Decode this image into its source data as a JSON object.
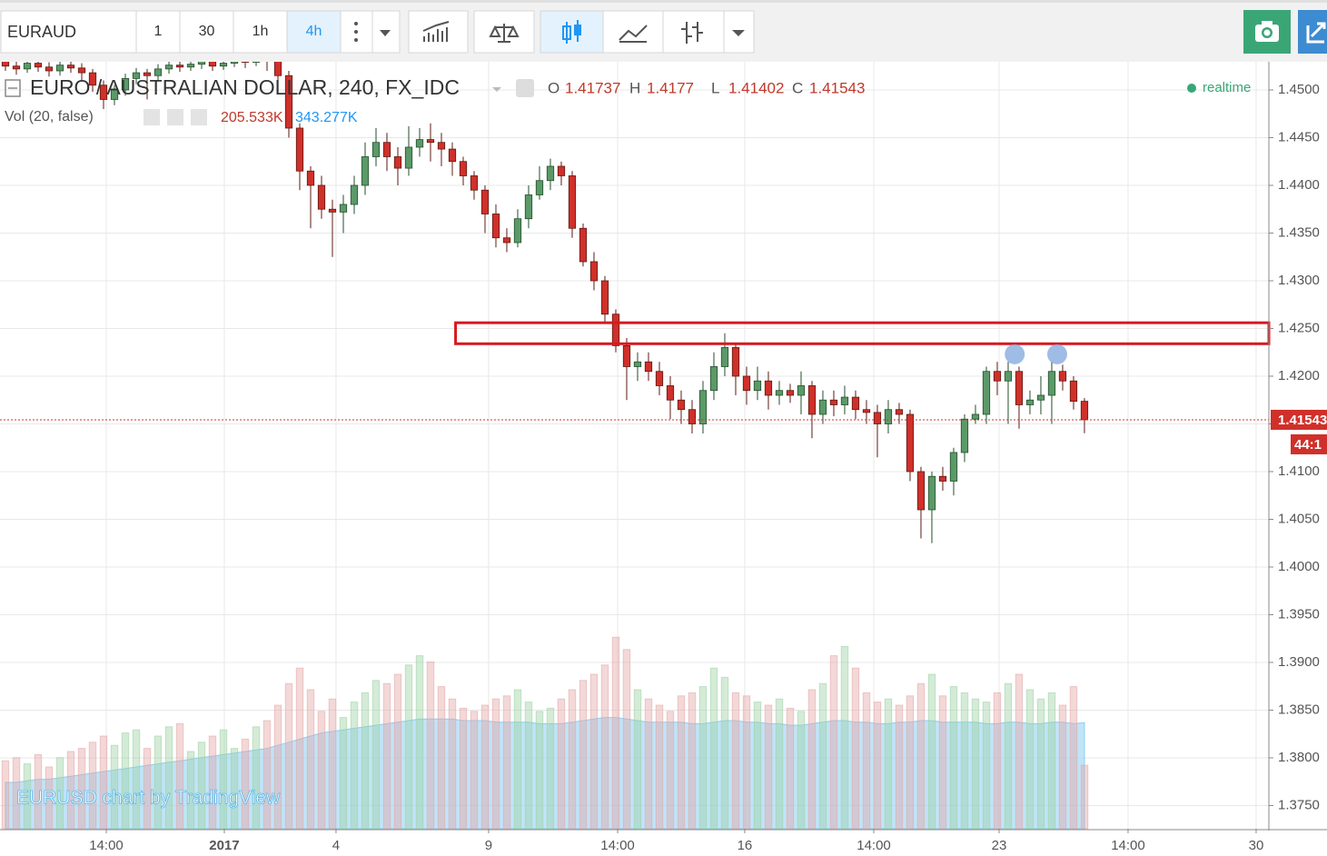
{
  "toolbar": {
    "symbol": "EURAUD",
    "intervals": [
      "1",
      "30",
      "1h",
      "4h"
    ],
    "active_interval": 3
  },
  "chart_data": {
    "type": "candlestick",
    "title": "EURO / AUSTRALIAN DOLLAR, 240, FX_IDC",
    "ohlc_labels": [
      "O",
      "H",
      "L",
      "C"
    ],
    "status": "realtime",
    "volume_title": "Vol (20, false)",
    "volume_readout": [
      "205.533K",
      "343.277K"
    ],
    "countdown": "44:1",
    "watermark": "EURUSD chart by TradingView",
    "up_color": "#5b9a68",
    "down_color": "#d0302a",
    "ohlc": [
      [
        1.453,
        1.4535,
        1.452,
        1.4525
      ],
      [
        1.4525,
        1.453,
        1.4516,
        1.4522
      ],
      [
        1.4522,
        1.4533,
        1.4518,
        1.4528
      ],
      [
        1.4528,
        1.4532,
        1.4519,
        1.4524
      ],
      [
        1.4524,
        1.4529,
        1.4514,
        1.452
      ],
      [
        1.452,
        1.4531,
        1.4515,
        1.4526
      ],
      [
        1.4526,
        1.453,
        1.4518,
        1.4523
      ],
      [
        1.4523,
        1.4528,
        1.451,
        1.4518
      ],
      [
        1.4518,
        1.4522,
        1.4498,
        1.4505
      ],
      [
        1.4505,
        1.451,
        1.448,
        1.449
      ],
      [
        1.449,
        1.4505,
        1.4484,
        1.45
      ],
      [
        1.45,
        1.4517,
        1.4494,
        1.4512
      ],
      [
        1.4512,
        1.4523,
        1.4506,
        1.4518
      ],
      [
        1.4518,
        1.4522,
        1.449,
        1.4515
      ],
      [
        1.4515,
        1.4527,
        1.451,
        1.4522
      ],
      [
        1.4522,
        1.4531,
        1.4517,
        1.4526
      ],
      [
        1.4526,
        1.453,
        1.4519,
        1.4524
      ],
      [
        1.4524,
        1.4532,
        1.452,
        1.4527
      ],
      [
        1.4527,
        1.4535,
        1.4522,
        1.453
      ],
      [
        1.453,
        1.4534,
        1.452,
        1.4525
      ],
      [
        1.4525,
        1.4533,
        1.4521,
        1.4528
      ],
      [
        1.4528,
        1.4536,
        1.4524,
        1.4531
      ],
      [
        1.4531,
        1.4535,
        1.4523,
        1.4529
      ],
      [
        1.4529,
        1.4538,
        1.4525,
        1.4533
      ],
      [
        1.4533,
        1.4537,
        1.452,
        1.453
      ],
      [
        1.453,
        1.4535,
        1.4505,
        1.4515
      ],
      [
        1.4515,
        1.452,
        1.445,
        1.446
      ],
      [
        1.446,
        1.4465,
        1.4395,
        1.4415
      ],
      [
        1.4415,
        1.442,
        1.4355,
        1.44
      ],
      [
        1.44,
        1.441,
        1.4365,
        1.4375
      ],
      [
        1.4375,
        1.4385,
        1.4325,
        1.4372
      ],
      [
        1.4372,
        1.439,
        1.435,
        1.438
      ],
      [
        1.438,
        1.441,
        1.437,
        1.44
      ],
      [
        1.44,
        1.4445,
        1.439,
        1.443
      ],
      [
        1.443,
        1.446,
        1.442,
        1.4445
      ],
      [
        1.4445,
        1.4455,
        1.4415,
        1.443
      ],
      [
        1.443,
        1.444,
        1.44,
        1.4418
      ],
      [
        1.4418,
        1.4462,
        1.441,
        1.444
      ],
      [
        1.444,
        1.446,
        1.443,
        1.4448
      ],
      [
        1.4448,
        1.4465,
        1.4425,
        1.4445
      ],
      [
        1.4445,
        1.4455,
        1.442,
        1.4438
      ],
      [
        1.4438,
        1.4445,
        1.441,
        1.4425
      ],
      [
        1.4425,
        1.443,
        1.44,
        1.441
      ],
      [
        1.441,
        1.4415,
        1.4385,
        1.4395
      ],
      [
        1.4395,
        1.44,
        1.435,
        1.437
      ],
      [
        1.437,
        1.438,
        1.4335,
        1.4345
      ],
      [
        1.4345,
        1.4355,
        1.433,
        1.434
      ],
      [
        1.434,
        1.4375,
        1.4335,
        1.4365
      ],
      [
        1.4365,
        1.44,
        1.4355,
        1.439
      ],
      [
        1.439,
        1.442,
        1.4385,
        1.4405
      ],
      [
        1.4405,
        1.4428,
        1.4395,
        1.442
      ],
      [
        1.442,
        1.4425,
        1.44,
        1.441
      ],
      [
        1.441,
        1.4415,
        1.4345,
        1.4355
      ],
      [
        1.4355,
        1.436,
        1.4315,
        1.432
      ],
      [
        1.432,
        1.433,
        1.429,
        1.43
      ],
      [
        1.43,
        1.4305,
        1.4255,
        1.4265
      ],
      [
        1.4265,
        1.427,
        1.4225,
        1.4232
      ],
      [
        1.4232,
        1.424,
        1.4175,
        1.421
      ],
      [
        1.421,
        1.4225,
        1.4195,
        1.4215
      ],
      [
        1.4215,
        1.4225,
        1.4195,
        1.4205
      ],
      [
        1.4205,
        1.4215,
        1.418,
        1.419
      ],
      [
        1.419,
        1.42,
        1.4155,
        1.4175
      ],
      [
        1.4175,
        1.4185,
        1.415,
        1.4165
      ],
      [
        1.4165,
        1.4175,
        1.414,
        1.415
      ],
      [
        1.415,
        1.4195,
        1.414,
        1.4185
      ],
      [
        1.4185,
        1.4225,
        1.4175,
        1.421
      ],
      [
        1.421,
        1.4245,
        1.42,
        1.423
      ],
      [
        1.423,
        1.4235,
        1.418,
        1.42
      ],
      [
        1.42,
        1.421,
        1.417,
        1.4185
      ],
      [
        1.4185,
        1.421,
        1.4175,
        1.4195
      ],
      [
        1.4195,
        1.4205,
        1.4165,
        1.418
      ],
      [
        1.418,
        1.4195,
        1.417,
        1.4185
      ],
      [
        1.4185,
        1.4192,
        1.4172,
        1.418
      ],
      [
        1.418,
        1.4205,
        1.416,
        1.419
      ],
      [
        1.419,
        1.4195,
        1.4135,
        1.416
      ],
      [
        1.416,
        1.4185,
        1.415,
        1.4175
      ],
      [
        1.4175,
        1.4185,
        1.4158,
        1.417
      ],
      [
        1.417,
        1.419,
        1.416,
        1.4178
      ],
      [
        1.4178,
        1.4185,
        1.4155,
        1.4165
      ],
      [
        1.4165,
        1.4175,
        1.415,
        1.4162
      ],
      [
        1.4162,
        1.417,
        1.4115,
        1.415
      ],
      [
        1.415,
        1.4175,
        1.414,
        1.4165
      ],
      [
        1.4165,
        1.4172,
        1.415,
        1.416
      ],
      [
        1.416,
        1.4165,
        1.409,
        1.41
      ],
      [
        1.41,
        1.4105,
        1.403,
        1.406
      ],
      [
        1.406,
        1.41,
        1.4025,
        1.4095
      ],
      [
        1.4095,
        1.4105,
        1.408,
        1.409
      ],
      [
        1.409,
        1.4125,
        1.4075,
        1.412
      ],
      [
        1.412,
        1.416,
        1.411,
        1.4155
      ],
      [
        1.4155,
        1.417,
        1.415,
        1.416
      ],
      [
        1.416,
        1.421,
        1.415,
        1.4205
      ],
      [
        1.4205,
        1.4215,
        1.418,
        1.4195
      ],
      [
        1.4195,
        1.4215,
        1.415,
        1.4205
      ],
      [
        1.4205,
        1.421,
        1.4145,
        1.417
      ],
      [
        1.417,
        1.4185,
        1.416,
        1.4175
      ],
      [
        1.4175,
        1.42,
        1.416,
        1.418
      ],
      [
        1.418,
        1.4215,
        1.415,
        1.4205
      ],
      [
        1.4205,
        1.4212,
        1.4185,
        1.4195
      ],
      [
        1.4195,
        1.42,
        1.4165,
        1.41737
      ],
      [
        1.41737,
        1.4177,
        1.41402,
        1.41543
      ]
    ],
    "volume": [
      220,
      230,
      210,
      240,
      200,
      230,
      250,
      260,
      280,
      300,
      270,
      310,
      320,
      260,
      300,
      330,
      340,
      250,
      280,
      300,
      320,
      260,
      290,
      330,
      350,
      400,
      470,
      520,
      450,
      380,
      420,
      360,
      410,
      440,
      480,
      470,
      500,
      530,
      560,
      540,
      460,
      420,
      390,
      380,
      400,
      420,
      430,
      450,
      410,
      380,
      390,
      420,
      450,
      480,
      500,
      530,
      620,
      580,
      450,
      420,
      400,
      380,
      430,
      440,
      460,
      520,
      490,
      440,
      430,
      410,
      400,
      420,
      390,
      380,
      450,
      470,
      560,
      590,
      520,
      440,
      410,
      420,
      400,
      430,
      470,
      500,
      430,
      460,
      440,
      420,
      410,
      440,
      470,
      500,
      450,
      420,
      440,
      400,
      460,
      205.533
    ],
    "volume_ma": [
      150,
      150,
      155,
      160,
      160,
      165,
      170,
      175,
      180,
      185,
      190,
      195,
      200,
      205,
      210,
      215,
      220,
      225,
      230,
      235,
      240,
      245,
      250,
      255,
      260,
      270,
      280,
      290,
      300,
      310,
      315,
      320,
      325,
      330,
      335,
      340,
      345,
      350,
      355,
      355,
      355,
      355,
      350,
      350,
      350,
      345,
      345,
      345,
      345,
      340,
      340,
      340,
      345,
      350,
      355,
      360,
      360,
      355,
      350,
      345,
      345,
      345,
      345,
      340,
      340,
      345,
      350,
      350,
      345,
      345,
      340,
      340,
      335,
      335,
      340,
      345,
      350,
      350,
      345,
      345,
      340,
      340,
      345,
      345,
      350,
      350,
      345,
      345,
      345,
      345,
      340,
      340,
      345,
      345,
      340,
      340,
      345,
      345,
      340,
      343.277
    ],
    "zone": {
      "top": 1.4256,
      "bottom": 1.4234,
      "start": 41.8,
      "color": "#d71920"
    },
    "markers": [
      {
        "x": 93.1,
        "y": 1.4223
      },
      {
        "x": 97.0,
        "y": 1.4223
      }
    ],
    "xlim": [
      0,
      116.42
    ],
    "ylim": [
      1.37257,
      1.45295
    ],
    "xticks": [
      {
        "value": 9.75,
        "label": "14:00"
      },
      {
        "value": 20.58,
        "label": "2017"
      },
      {
        "value": 30.83,
        "label": "4"
      },
      {
        "value": 44.83,
        "label": "9"
      },
      {
        "value": 56.67,
        "label": "14:00"
      },
      {
        "value": 68.33,
        "label": "16"
      },
      {
        "value": 80.17,
        "label": "14:00"
      },
      {
        "value": 91.67,
        "label": "23"
      },
      {
        "value": 103.5,
        "label": "14:00"
      },
      {
        "value": 115.25,
        "label": "30"
      }
    ],
    "yticks": [
      {
        "value": 1.375,
        "label": "1.3750"
      },
      {
        "value": 1.38,
        "label": "1.3800"
      },
      {
        "value": 1.385,
        "label": "1.3850"
      },
      {
        "value": 1.39,
        "label": "1.3900"
      },
      {
        "value": 1.395,
        "label": "1.3950"
      },
      {
        "value": 1.4,
        "label": "1.4000"
      },
      {
        "value": 1.405,
        "label": "1.4050"
      },
      {
        "value": 1.41,
        "label": "1.4100"
      },
      {
        "value": 1.415,
        "label": "1.4150"
      },
      {
        "value": 1.42,
        "label": "1.4200"
      },
      {
        "value": 1.425,
        "label": "1.4250"
      },
      {
        "value": 1.43,
        "label": "1.4300"
      },
      {
        "value": 1.435,
        "label": "1.4350"
      },
      {
        "value": 1.44,
        "label": "1.4400"
      },
      {
        "value": 1.445,
        "label": "1.4450"
      },
      {
        "value": 1.45,
        "label": "1.4500"
      }
    ],
    "grid": true
  }
}
